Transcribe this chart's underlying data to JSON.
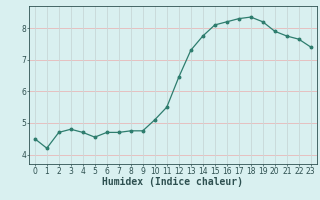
{
  "x": [
    0,
    1,
    2,
    3,
    4,
    5,
    6,
    7,
    8,
    9,
    10,
    11,
    12,
    13,
    14,
    15,
    16,
    17,
    18,
    19,
    20,
    21,
    22,
    23
  ],
  "y": [
    4.5,
    4.2,
    4.7,
    4.8,
    4.7,
    4.55,
    4.7,
    4.7,
    4.75,
    4.75,
    5.1,
    5.5,
    6.45,
    7.3,
    7.75,
    8.1,
    8.2,
    8.3,
    8.35,
    8.2,
    7.9,
    7.75,
    7.65,
    7.4
  ],
  "line_color": "#2e7d6e",
  "marker": "o",
  "marker_size": 1.8,
  "line_width": 0.9,
  "bg_color": "#d9f0f0",
  "grid_color_h": "#e8b8b8",
  "grid_color_v": "#c8d8d8",
  "xlabel": "Humidex (Indice chaleur)",
  "xlabel_fontsize": 7,
  "yticks": [
    4,
    5,
    6,
    7,
    8
  ],
  "xtick_labels": [
    "0",
    "1",
    "2",
    "3",
    "4",
    "5",
    "6",
    "7",
    "8",
    "9",
    "10",
    "11",
    "12",
    "13",
    "14",
    "15",
    "16",
    "17",
    "18",
    "19",
    "20",
    "21",
    "22",
    "23"
  ],
  "xlim": [
    -0.5,
    23.5
  ],
  "ylim": [
    3.7,
    8.7
  ],
  "tick_fontsize": 5.5,
  "axis_color": "#2e5050",
  "fig_width": 3.2,
  "fig_height": 2.0,
  "dpi": 100
}
